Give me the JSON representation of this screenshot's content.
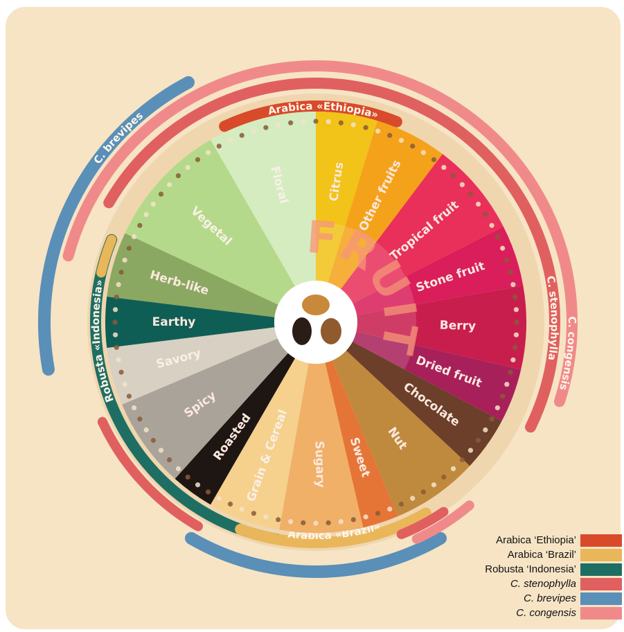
{
  "wheel": {
    "center_label": "FRUIT",
    "segments": [
      {
        "label": "Citrus",
        "color": "#f2c318"
      },
      {
        "label": "Other fruits",
        "color": "#f5a21b"
      },
      {
        "label": "Tropical fruit",
        "color": "#e8305a"
      },
      {
        "label": "Stone fruit",
        "color": "#d91e5b"
      },
      {
        "label": "Berry",
        "color": "#c81e4e"
      },
      {
        "label": "Dried fruit",
        "color": "#a8205a"
      },
      {
        "label": "Chocolate",
        "color": "#6b3f2a"
      },
      {
        "label": "Nut",
        "color": "#c08a3e"
      },
      {
        "label": "Sweet",
        "color": "#e57536"
      },
      {
        "label": "Sugary",
        "color": "#f0b068"
      },
      {
        "label": "Grain & Cereal",
        "color": "#f6d08d"
      },
      {
        "label": "Roasted",
        "color": "#1e1613"
      },
      {
        "label": "Spicy",
        "color": "#aaa39a"
      },
      {
        "label": "Savory",
        "color": "#d8d0c3"
      },
      {
        "label": "Earthy",
        "color": "#0f5e55"
      },
      {
        "label": "Herb-like",
        "color": "#8ba862"
      },
      {
        "label": "Vegetal",
        "color": "#b5d98a"
      },
      {
        "label": "Floral",
        "color": "#d5ecc0"
      }
    ]
  },
  "arcs": [
    {
      "label": "Arabica «Ethiopia»",
      "color": "#d84a2a"
    },
    {
      "label": "C. brevipes",
      "color": "#5a8fb8"
    },
    {
      "label": "C. stenophylla",
      "color": "#e06060"
    },
    {
      "label": "C. congensis",
      "color": "#f08a8a"
    },
    {
      "label": "Robusta «Indonesia»",
      "color": "#1f6e63"
    },
    {
      "label": "Arabica «Brazil»",
      "color": "#eab65a"
    }
  ],
  "legend": [
    {
      "label": "Arabica ‘Ethiopia’",
      "color": "#d84a2a"
    },
    {
      "label": "Arabica ‘Brazil’",
      "color": "#eab65a"
    },
    {
      "label": "Robusta ‘Indonesia’",
      "color": "#1f6e63"
    },
    {
      "label": "C. stenophylla",
      "color": "#e06060"
    },
    {
      "label": "C. brevipes",
      "color": "#5a8fb8"
    },
    {
      "label": "C. congensis",
      "color": "#f08a8a"
    }
  ]
}
